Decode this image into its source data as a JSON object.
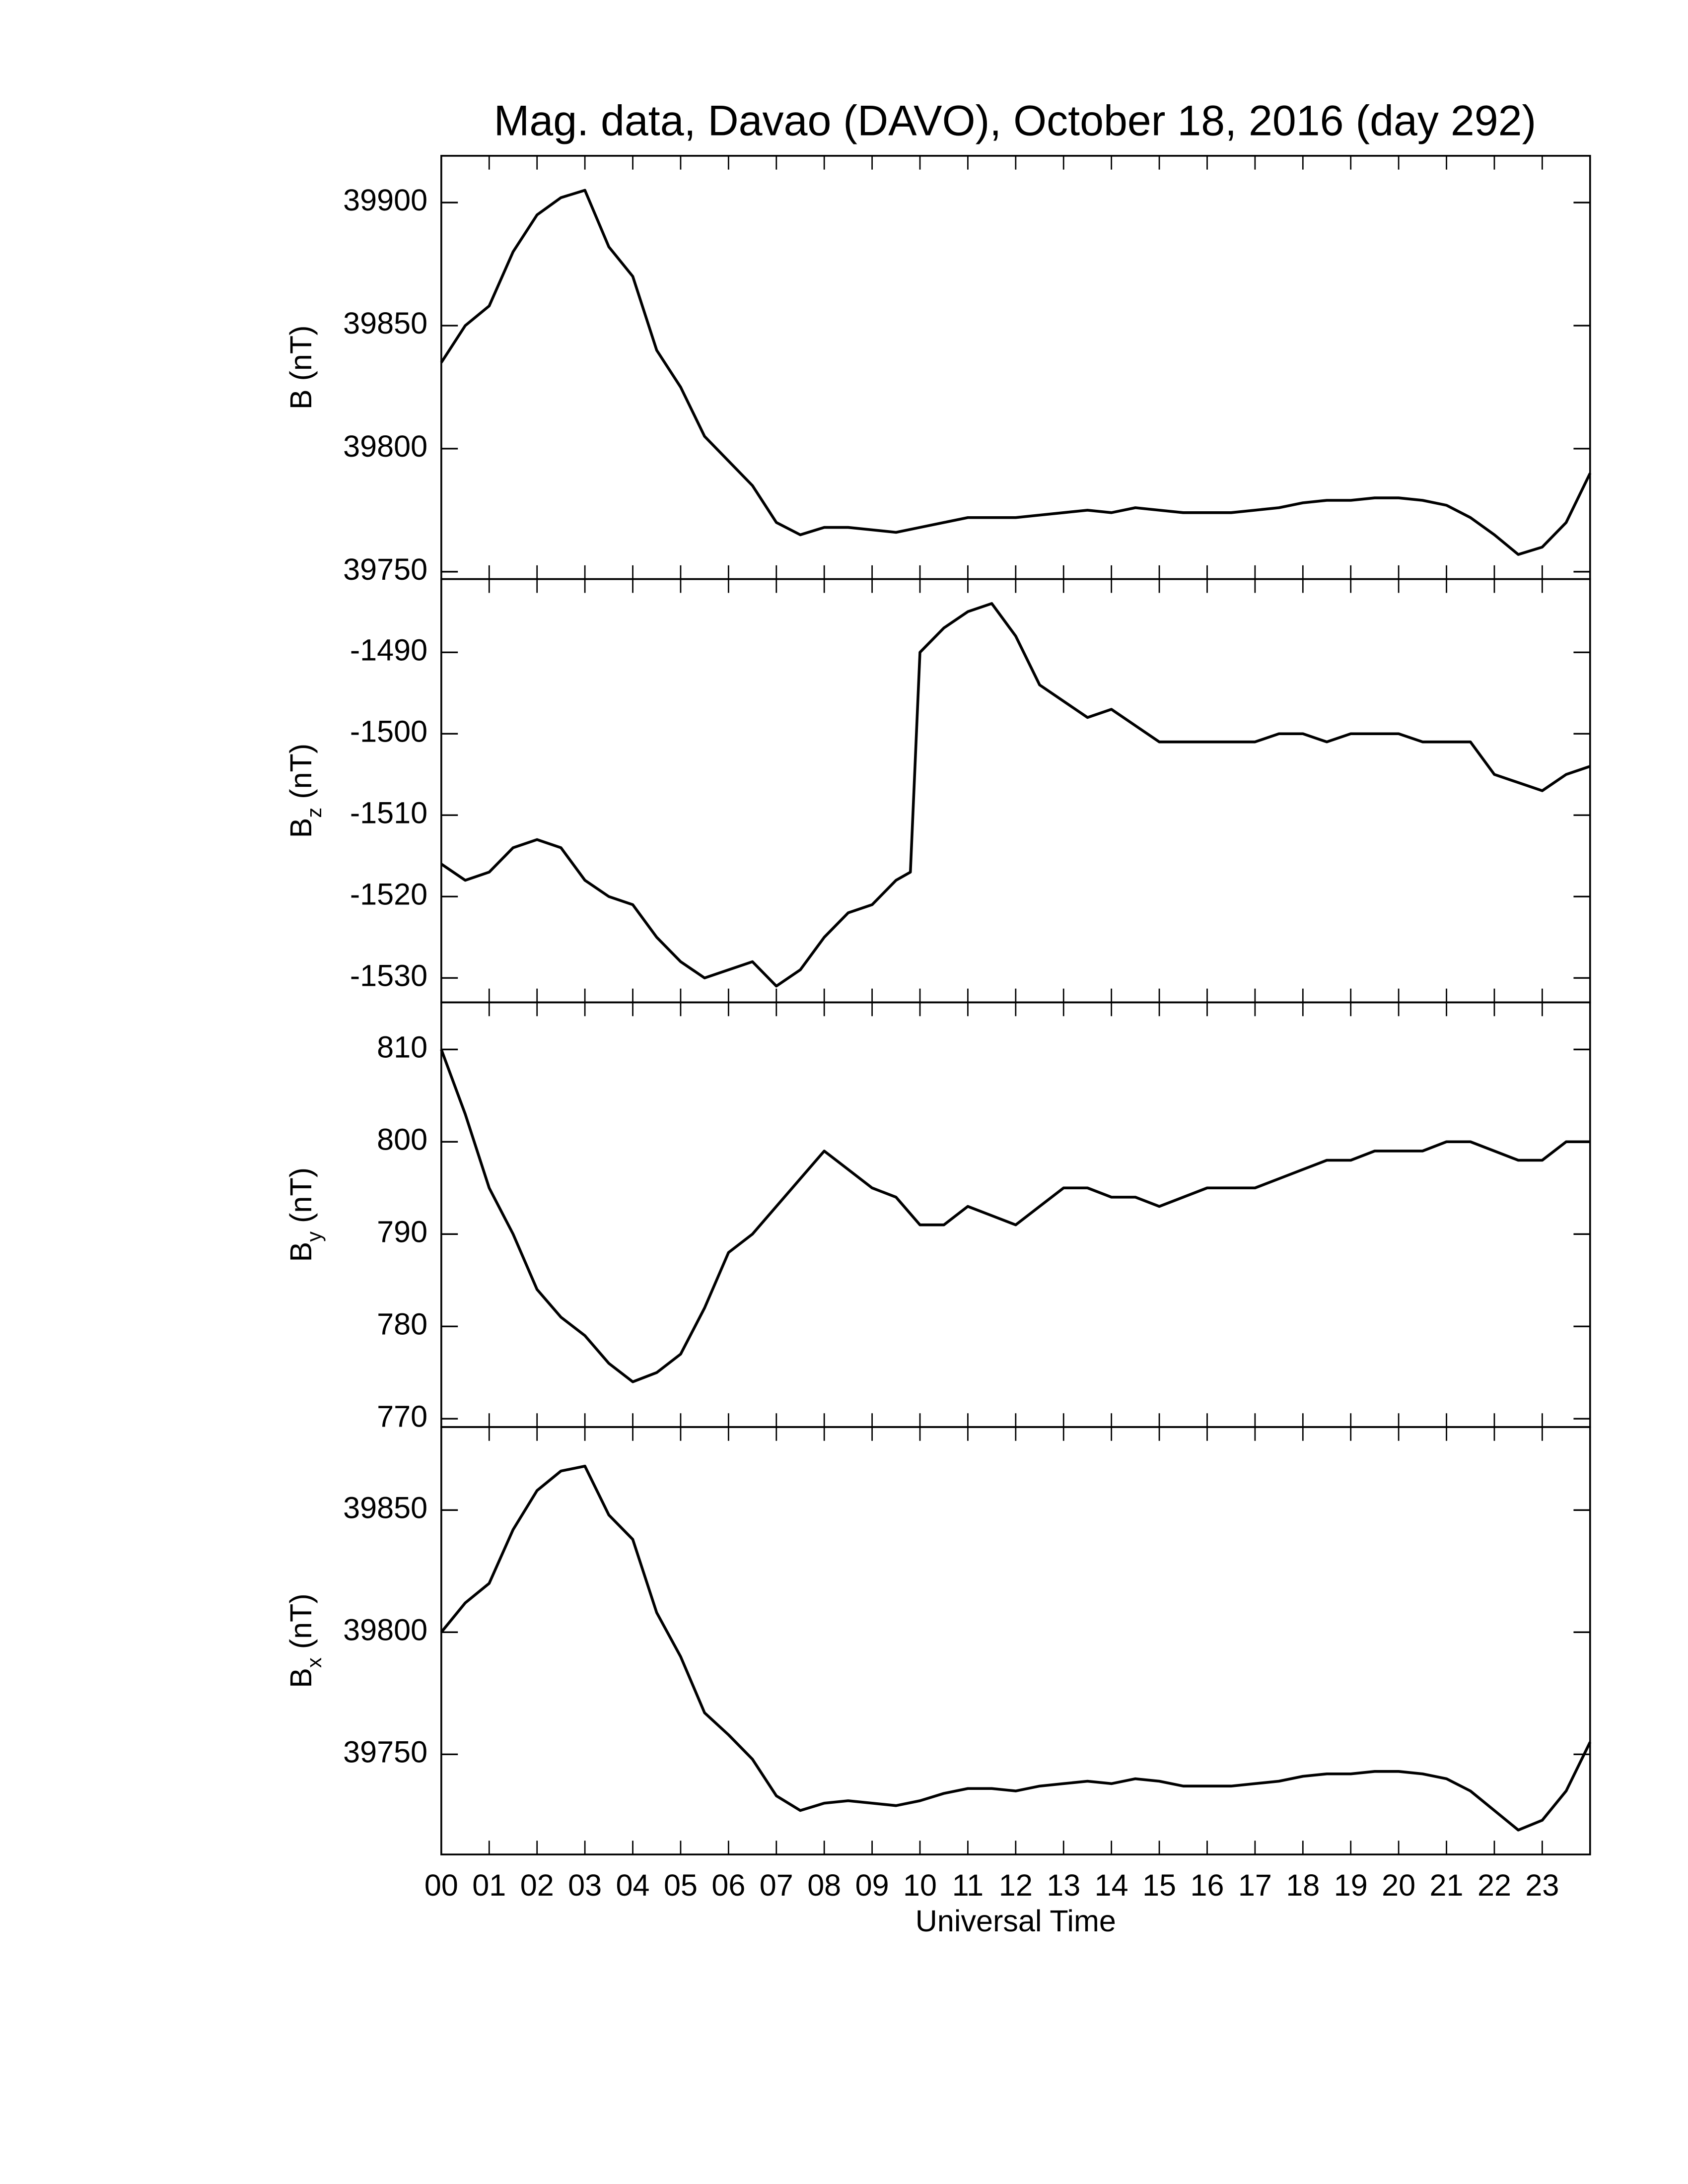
{
  "chart_data": [
    {
      "type": "line",
      "title": "Mag. data, Davao (DAVO), October 18, 2016 (day 292)",
      "ylabel": [
        {
          "text": "B (nT)"
        }
      ],
      "x": [
        0,
        0.5,
        1,
        1.5,
        2,
        2.5,
        3,
        3.5,
        4,
        4.5,
        5,
        5.5,
        6,
        6.5,
        7,
        7.5,
        8,
        8.5,
        9,
        9.5,
        10,
        10.5,
        11,
        11.5,
        12,
        12.5,
        13,
        13.5,
        14,
        14.5,
        15,
        15.5,
        16,
        16.5,
        17,
        17.5,
        18,
        18.5,
        19,
        19.5,
        20,
        20.5,
        21,
        21.5,
        22,
        22.5,
        23,
        23.5,
        24
      ],
      "values": [
        39835,
        39850,
        39858,
        39880,
        39895,
        39902,
        39905,
        39882,
        39870,
        39840,
        39825,
        39805,
        39795,
        39785,
        39770,
        39765,
        39768,
        39768,
        39767,
        39766,
        39768,
        39770,
        39772,
        39772,
        39772,
        39773,
        39774,
        39775,
        39774,
        39776,
        39775,
        39774,
        39774,
        39774,
        39775,
        39776,
        39778,
        39779,
        39779,
        39780,
        39780,
        39779,
        39777,
        39772,
        39765,
        39757,
        39760,
        39770,
        39790
      ],
      "color": "#000000",
      "xlim": [
        0,
        24
      ],
      "ylim": [
        39747,
        39919
      ],
      "yticks": [
        39750,
        39800,
        39850,
        39900
      ]
    },
    {
      "type": "line",
      "ylabel": [
        {
          "text": "B"
        },
        {
          "text": "z",
          "sub": true
        },
        {
          "text": " (nT)"
        }
      ],
      "x": [
        0,
        0.5,
        1,
        1.5,
        2,
        2.5,
        3,
        3.5,
        4,
        4.5,
        5,
        5.5,
        6,
        6.5,
        7,
        7.5,
        8,
        8.5,
        9,
        9.5,
        9.8,
        10,
        10.5,
        11,
        11.5,
        12,
        12.5,
        13,
        13.5,
        14,
        14.5,
        15,
        15.5,
        16,
        16.5,
        17,
        17.5,
        18,
        18.5,
        19,
        19.5,
        20,
        20.5,
        21,
        21.5,
        22,
        22.5,
        23,
        23.5,
        24
      ],
      "values": [
        -1516,
        -1518,
        -1517,
        -1514,
        -1513,
        -1514,
        -1518,
        -1520,
        -1521,
        -1525,
        -1528,
        -1530,
        -1529,
        -1528,
        -1531,
        -1529,
        -1525,
        -1522,
        -1521,
        -1518,
        -1517,
        -1490,
        -1487,
        -1485,
        -1484,
        -1488,
        -1494,
        -1496,
        -1498,
        -1497,
        -1499,
        -1501,
        -1501,
        -1501,
        -1501,
        -1501,
        -1500,
        -1500,
        -1501,
        -1500,
        -1500,
        -1500,
        -1501,
        -1501,
        -1501,
        -1505,
        -1506,
        -1507,
        -1505,
        -1504
      ],
      "color": "#000000",
      "xlim": [
        0,
        24
      ],
      "ylim": [
        -1533,
        -1481
      ],
      "yticks": [
        -1530,
        -1520,
        -1510,
        -1500,
        -1490
      ]
    },
    {
      "type": "line",
      "ylabel": [
        {
          "text": "B"
        },
        {
          "text": "y",
          "sub": true
        },
        {
          "text": " (nT)"
        }
      ],
      "x": [
        0,
        0.5,
        1,
        1.5,
        2,
        2.5,
        3,
        3.5,
        4,
        4.5,
        5,
        5.5,
        6,
        6.5,
        7,
        7.5,
        8,
        8.5,
        9,
        9.5,
        10,
        10.5,
        11,
        11.5,
        12,
        12.5,
        13,
        13.5,
        14,
        14.5,
        15,
        15.5,
        16,
        16.5,
        17,
        17.5,
        18,
        18.5,
        19,
        19.5,
        20,
        20.5,
        21,
        21.5,
        22,
        22.5,
        23,
        23.5,
        24
      ],
      "values": [
        810,
        803,
        795,
        790,
        784,
        781,
        779,
        776,
        774,
        775,
        777,
        782,
        788,
        790,
        793,
        796,
        799,
        797,
        795,
        794,
        791,
        791,
        793,
        792,
        791,
        793,
        795,
        795,
        794,
        794,
        793,
        794,
        795,
        795,
        795,
        796,
        797,
        798,
        798,
        799,
        799,
        799,
        800,
        800,
        799,
        798,
        798,
        800,
        800
      ],
      "color": "#000000",
      "xlim": [
        0,
        24
      ],
      "ylim": [
        769.1,
        815.1
      ],
      "yticks": [
        770,
        780,
        790,
        800,
        810
      ]
    },
    {
      "type": "line",
      "ylabel": [
        {
          "text": "B"
        },
        {
          "text": "x",
          "sub": true
        },
        {
          "text": " (nT)"
        }
      ],
      "xlabel": "Universal Time",
      "x": [
        0,
        0.5,
        1,
        1.5,
        2,
        2.5,
        3,
        3.5,
        4,
        4.5,
        5,
        5.5,
        6,
        6.5,
        7,
        7.5,
        8,
        8.5,
        9,
        9.5,
        10,
        10.5,
        11,
        11.5,
        12,
        12.5,
        13,
        13.5,
        14,
        14.5,
        15,
        15.5,
        16,
        16.5,
        17,
        17.5,
        18,
        18.5,
        19,
        19.5,
        20,
        20.5,
        21,
        21.5,
        22,
        22.5,
        23,
        23.5,
        24
      ],
      "values": [
        39800,
        39812,
        39820,
        39842,
        39858,
        39866,
        39868,
        39848,
        39838,
        39808,
        39790,
        39767,
        39758,
        39748,
        39733,
        39727,
        39730,
        39731,
        39730,
        39729,
        39731,
        39734,
        39736,
        39736,
        39735,
        39737,
        39738,
        39739,
        39738,
        39740,
        39739,
        39737,
        39737,
        39737,
        39738,
        39739,
        39741,
        39742,
        39742,
        39743,
        39743,
        39742,
        39740,
        39735,
        39727,
        39719,
        39723,
        39735,
        39755
      ],
      "color": "#000000",
      "xlim": [
        0,
        24
      ],
      "ylim": [
        39709,
        39884
      ],
      "yticks": [
        39750,
        39800,
        39850
      ],
      "xticks": [
        {
          "value": 0,
          "label": "00"
        },
        {
          "value": 1,
          "label": "01"
        },
        {
          "value": 2,
          "label": "02"
        },
        {
          "value": 3,
          "label": "03"
        },
        {
          "value": 4,
          "label": "04"
        },
        {
          "value": 5,
          "label": "05"
        },
        {
          "value": 6,
          "label": "06"
        },
        {
          "value": 7,
          "label": "07"
        },
        {
          "value": 8,
          "label": "08"
        },
        {
          "value": 9,
          "label": "09"
        },
        {
          "value": 10,
          "label": "10"
        },
        {
          "value": 11,
          "label": "11"
        },
        {
          "value": 12,
          "label": "12"
        },
        {
          "value": 13,
          "label": "13"
        },
        {
          "value": 14,
          "label": "14"
        },
        {
          "value": 15,
          "label": "15"
        },
        {
          "value": 16,
          "label": "16"
        },
        {
          "value": 17,
          "label": "17"
        },
        {
          "value": 18,
          "label": "18"
        },
        {
          "value": 19,
          "label": "19"
        },
        {
          "value": 20,
          "label": "20"
        },
        {
          "value": 21,
          "label": "21"
        },
        {
          "value": 22,
          "label": "22"
        },
        {
          "value": 23,
          "label": "23"
        }
      ]
    }
  ]
}
